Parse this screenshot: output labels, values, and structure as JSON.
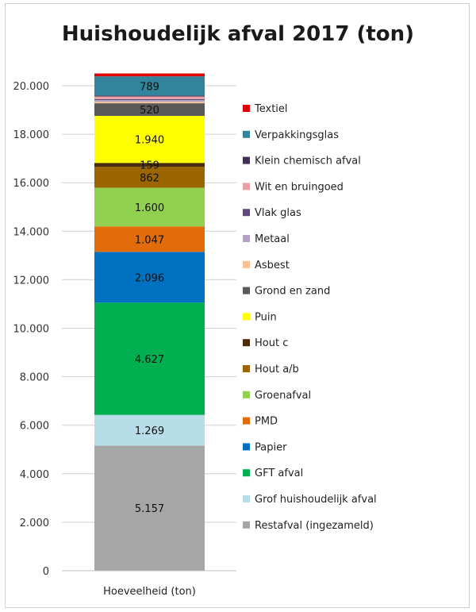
{
  "chart_data": {
    "type": "bar",
    "stacked": true,
    "title": "Huishoudelijk afval 2017 (ton)",
    "categories": [
      "Hoeveelheid (ton)"
    ],
    "xlabel": "",
    "ylabel": "",
    "ylim": [
      0,
      20000
    ],
    "yticks": [
      "0",
      "2.000",
      "4.000",
      "6.000",
      "8.000",
      "10.000",
      "12.000",
      "14.000",
      "16.000",
      "18.000",
      "20.000"
    ],
    "grid": true,
    "legend_position": "right",
    "series": [
      {
        "name": "Restafval (ingezameld)",
        "value": 5157,
        "label": "5.157",
        "color": "#a6a6a6"
      },
      {
        "name": "Grof huishoudelijk afval",
        "value": 1269,
        "label": "1.269",
        "color": "#b7dde8"
      },
      {
        "name": "GFT afval",
        "value": 4627,
        "label": "4.627",
        "color": "#00b050"
      },
      {
        "name": "Papier",
        "value": 2096,
        "label": "2.096",
        "color": "#0070c0"
      },
      {
        "name": "PMD",
        "value": 1047,
        "label": "1.047",
        "color": "#e26b0a"
      },
      {
        "name": "Groenafval",
        "value": 1600,
        "label": "1.600",
        "color": "#92d050"
      },
      {
        "name": "Hout a/b",
        "value": 862,
        "label": "862",
        "color": "#9c6500"
      },
      {
        "name": "Hout c",
        "value": 159,
        "label": "159",
        "color": "#4a2c0a"
      },
      {
        "name": "Puin",
        "value": 1940,
        "label": "1.940",
        "color": "#ffff00"
      },
      {
        "name": "Grond en zand",
        "value": 520,
        "label": "520",
        "color": "#595959"
      },
      {
        "name": "Asbest",
        "value": 60,
        "label": "",
        "color": "#fac090"
      },
      {
        "name": "Metaal",
        "value": 70,
        "label": "",
        "color": "#b3a2c7"
      },
      {
        "name": "Vlak glas",
        "value": 40,
        "label": "",
        "color": "#604a7b"
      },
      {
        "name": "Wit en bruingoed",
        "value": 110,
        "label": "",
        "color": "#e6a0a6"
      },
      {
        "name": "Klein chemisch afval",
        "value": 40,
        "label": "",
        "color": "#403152"
      },
      {
        "name": "Verpakkingsglas",
        "value": 789,
        "label": "789",
        "color": "#31849b"
      },
      {
        "name": "Textiel",
        "value": 120,
        "label": "",
        "color": "#e00000"
      }
    ]
  }
}
